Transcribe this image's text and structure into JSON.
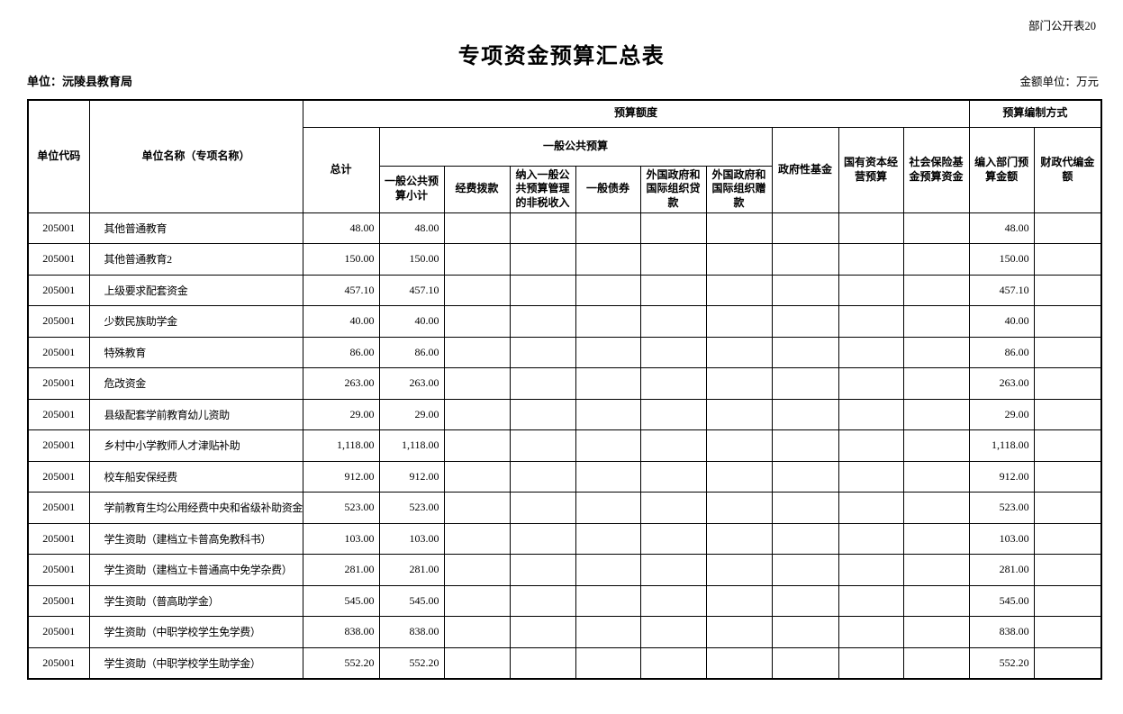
{
  "page": {
    "doc_label": "部门公开表20",
    "title": "专项资金预算汇总表",
    "unit_label": "单位：沅陵县教育局",
    "amount_unit_label": "金额单位：万元"
  },
  "table": {
    "header": {
      "unit_code": "单位代码",
      "unit_name": "单位名称（专项名称）",
      "budget_amount_group": "预算额度",
      "budget_method_group": "预算编制方式",
      "total": "总计",
      "general_public_group": "一般公共预算",
      "general_public_subtotal": "一般公共预算小计",
      "fund_allocation": "经费拨款",
      "non_tax_income": "纳入一般公共预算管理的非税收入",
      "general_bonds": "一般债券",
      "foreign_loans": "外国政府和国际组织贷款",
      "foreign_grants": "外国政府和国际组织赠款",
      "government_fund": "政府性基金",
      "state_capital": "国有资本经营预算",
      "social_insurance": "社会保险基金预算资金",
      "dept_budget_amount": "编入部门预算金额",
      "fiscal_proxy_amount": "财政代编金额"
    },
    "rows": [
      {
        "code": "205001",
        "name": "其他普通教育",
        "total": "48.00",
        "gp_subtotal": "48.00",
        "dept_amount": "48.00"
      },
      {
        "code": "205001",
        "name": "其他普通教育2",
        "total": "150.00",
        "gp_subtotal": "150.00",
        "dept_amount": "150.00"
      },
      {
        "code": "205001",
        "name": "上级要求配套资金",
        "total": "457.10",
        "gp_subtotal": "457.10",
        "dept_amount": "457.10"
      },
      {
        "code": "205001",
        "name": "少数民族助学金",
        "total": "40.00",
        "gp_subtotal": "40.00",
        "dept_amount": "40.00"
      },
      {
        "code": "205001",
        "name": "特殊教育",
        "total": "86.00",
        "gp_subtotal": "86.00",
        "dept_amount": "86.00"
      },
      {
        "code": "205001",
        "name": "危改资金",
        "total": "263.00",
        "gp_subtotal": "263.00",
        "dept_amount": "263.00"
      },
      {
        "code": "205001",
        "name": "县级配套学前教育幼儿资助",
        "total": "29.00",
        "gp_subtotal": "29.00",
        "dept_amount": "29.00"
      },
      {
        "code": "205001",
        "name": "乡村中小学教师人才津贴补助",
        "total": "1,118.00",
        "gp_subtotal": "1,118.00",
        "dept_amount": "1,118.00"
      },
      {
        "code": "205001",
        "name": "校车船安保经费",
        "total": "912.00",
        "gp_subtotal": "912.00",
        "dept_amount": "912.00"
      },
      {
        "code": "205001",
        "name": "学前教育生均公用经费中央和省级补助资金",
        "total": "523.00",
        "gp_subtotal": "523.00",
        "dept_amount": "523.00"
      },
      {
        "code": "205001",
        "name": "学生资助（建档立卡普高免教科书）",
        "total": "103.00",
        "gp_subtotal": "103.00",
        "dept_amount": "103.00"
      },
      {
        "code": "205001",
        "name": "学生资助（建档立卡普通高中免学杂费）",
        "total": "281.00",
        "gp_subtotal": "281.00",
        "dept_amount": "281.00"
      },
      {
        "code": "205001",
        "name": "学生资助（普高助学金）",
        "total": "545.00",
        "gp_subtotal": "545.00",
        "dept_amount": "545.00"
      },
      {
        "code": "205001",
        "name": "学生资助（中职学校学生免学费）",
        "total": "838.00",
        "gp_subtotal": "838.00",
        "dept_amount": "838.00"
      },
      {
        "code": "205001",
        "name": "学生资助（中职学校学生助学金）",
        "total": "552.20",
        "gp_subtotal": "552.20",
        "dept_amount": "552.20"
      }
    ]
  }
}
